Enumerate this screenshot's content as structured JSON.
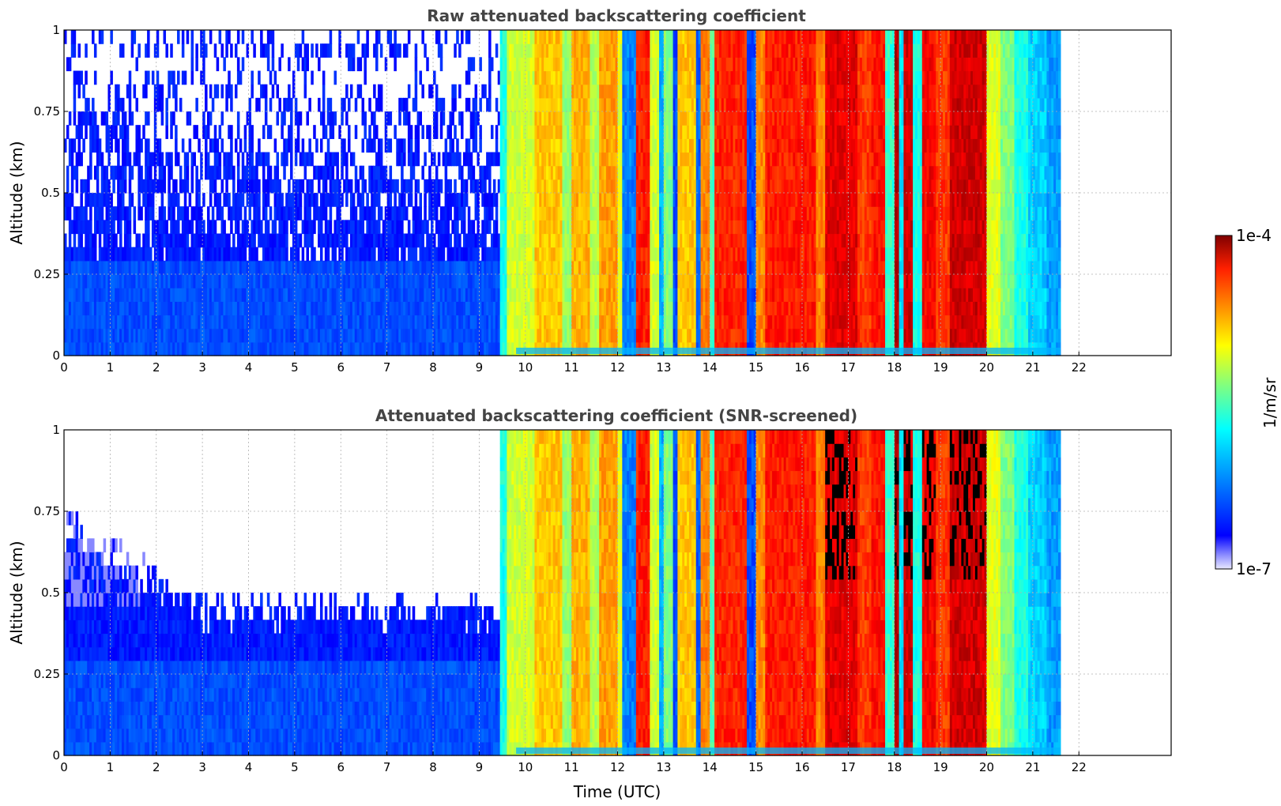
{
  "chart_data": [
    {
      "type": "heatmap",
      "title": "Raw attenuated backscattering coefficient",
      "xlabel": "",
      "ylabel": "Altitude (km)",
      "xlim": [
        0,
        24
      ],
      "ylim": [
        0,
        1
      ],
      "x_ticks": [
        "0",
        "1",
        "2",
        "3",
        "4",
        "5",
        "6",
        "7",
        "8",
        "9",
        "10",
        "11",
        "12",
        "13",
        "14",
        "15",
        "16",
        "17",
        "18",
        "19",
        "20",
        "21",
        "22"
      ],
      "y_ticks": [
        "0",
        "0.25",
        "0.5",
        "0.75",
        "1"
      ],
      "grid": true,
      "data_end_hour": 21.6,
      "screened": false
    },
    {
      "type": "heatmap",
      "title": "Attenuated backscattering coefficient (SNR-screened)",
      "xlabel": "Time (UTC)",
      "ylabel": "Altitude (km)",
      "xlim": [
        0,
        24
      ],
      "ylim": [
        0,
        1
      ],
      "x_ticks": [
        "0",
        "1",
        "2",
        "3",
        "4",
        "5",
        "6",
        "7",
        "8",
        "9",
        "10",
        "11",
        "12",
        "13",
        "14",
        "15",
        "16",
        "17",
        "18",
        "19",
        "20",
        "21",
        "22"
      ],
      "y_ticks": [
        "0",
        "0.25",
        "0.5",
        "0.75",
        "1"
      ],
      "grid": true,
      "data_end_hour": 21.6,
      "screened": true
    }
  ],
  "colorbar": {
    "label": "1/m/sr",
    "max_label": "1e-4",
    "min_label": "1e-7",
    "scale": "log",
    "colormap": "jet"
  },
  "profile": [
    {
      "start": 0.0,
      "end": 9.4,
      "level": 0.18
    },
    {
      "start": 9.4,
      "end": 9.6,
      "level": 0.4
    },
    {
      "start": 9.6,
      "end": 10.2,
      "level": 0.58
    },
    {
      "start": 10.2,
      "end": 10.8,
      "level": 0.68
    },
    {
      "start": 10.8,
      "end": 11.0,
      "level": 0.52
    },
    {
      "start": 11.0,
      "end": 11.4,
      "level": 0.7
    },
    {
      "start": 11.4,
      "end": 11.6,
      "level": 0.55
    },
    {
      "start": 11.6,
      "end": 12.0,
      "level": 0.72
    },
    {
      "start": 12.0,
      "end": 12.1,
      "level": 0.6
    },
    {
      "start": 12.1,
      "end": 12.4,
      "level": 0.25
    },
    {
      "start": 12.4,
      "end": 12.7,
      "level": 0.85
    },
    {
      "start": 12.7,
      "end": 12.9,
      "level": 0.58
    },
    {
      "start": 12.9,
      "end": 13.0,
      "level": 0.3
    },
    {
      "start": 13.0,
      "end": 13.2,
      "level": 0.5
    },
    {
      "start": 13.2,
      "end": 13.3,
      "level": 0.2
    },
    {
      "start": 13.3,
      "end": 13.7,
      "level": 0.68
    },
    {
      "start": 13.7,
      "end": 13.8,
      "level": 0.22
    },
    {
      "start": 13.8,
      "end": 14.0,
      "level": 0.75
    },
    {
      "start": 14.0,
      "end": 14.1,
      "level": 0.45
    },
    {
      "start": 14.1,
      "end": 14.8,
      "level": 0.84
    },
    {
      "start": 14.8,
      "end": 15.0,
      "level": 0.2
    },
    {
      "start": 15.0,
      "end": 15.2,
      "level": 0.74
    },
    {
      "start": 15.2,
      "end": 16.3,
      "level": 0.85
    },
    {
      "start": 16.3,
      "end": 16.5,
      "level": 0.75
    },
    {
      "start": 16.5,
      "end": 17.2,
      "level": 0.9
    },
    {
      "start": 17.2,
      "end": 17.5,
      "level": 0.82
    },
    {
      "start": 17.5,
      "end": 17.8,
      "level": 0.86
    },
    {
      "start": 17.8,
      "end": 18.0,
      "level": 0.42
    },
    {
      "start": 18.0,
      "end": 18.1,
      "level": 0.95
    },
    {
      "start": 18.1,
      "end": 18.2,
      "level": 0.35
    },
    {
      "start": 18.2,
      "end": 18.4,
      "level": 0.92
    },
    {
      "start": 18.4,
      "end": 18.6,
      "level": 0.4
    },
    {
      "start": 18.6,
      "end": 18.9,
      "level": 0.88
    },
    {
      "start": 18.9,
      "end": 19.2,
      "level": 0.82
    },
    {
      "start": 19.2,
      "end": 20.0,
      "level": 0.92
    },
    {
      "start": 20.0,
      "end": 20.3,
      "level": 0.6
    },
    {
      "start": 20.3,
      "end": 20.6,
      "level": 0.5
    },
    {
      "start": 20.6,
      "end": 20.9,
      "level": 0.4
    },
    {
      "start": 20.9,
      "end": 21.3,
      "level": 0.33
    },
    {
      "start": 21.3,
      "end": 21.6,
      "level": 0.28
    }
  ]
}
